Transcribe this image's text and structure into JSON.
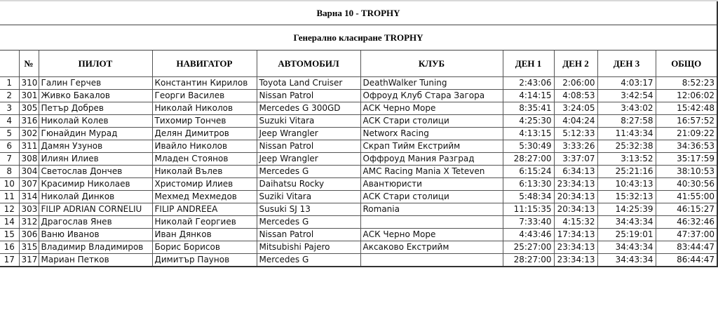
{
  "title": "Варна 10 - TROPHY",
  "subtitle": "Генерално класиране TROPHY",
  "columns": [
    "",
    "№",
    "ПИЛОТ",
    "НАВИГАТОР",
    "АВТОМОБИЛ",
    "КЛУБ",
    "ДЕН 1",
    "ДЕН 2",
    "ДЕН 3",
    "ОБЩО"
  ],
  "rows": [
    [
      "1",
      "310",
      "Галин Герчев",
      "Константин Кирилов",
      "Toyota Land Cruiser",
      "DeathWalker Tuning",
      "2:43:06",
      "2:06:00",
      "4:03:17",
      "8:52:23"
    ],
    [
      "2",
      "301",
      "Живко Бакалов",
      "Георги Василев",
      "Nissan Patrol",
      "Офроуд Клуб Стара Загора",
      "4:14:15",
      "4:08:53",
      "3:42:54",
      "12:06:02"
    ],
    [
      "3",
      "305",
      "Петър Добрев",
      "Николай Николов",
      "Mercedes G 300GD",
      "АСК Черно Море",
      "8:35:41",
      "3:24:05",
      "3:43:02",
      "15:42:48"
    ],
    [
      "4",
      "316",
      "Николай Колев",
      "Тихомир Тончев",
      "Suzuki Vitara",
      "АСК Стари столици",
      "4:25:30",
      "4:04:24",
      "8:27:58",
      "16:57:52"
    ],
    [
      "5",
      "302",
      "Гюнайдин Мурад",
      "Делян Димитров",
      "Jeep Wrangler",
      "Networx Racing",
      "4:13:15",
      "5:12:33",
      "11:43:34",
      "21:09:22"
    ],
    [
      "6",
      "311",
      "Дамян Узунов",
      "Ивайло Николов",
      "Nissan Patrol",
      "Скрап Тийм Екстрийм",
      "5:30:49",
      "3:33:26",
      "25:32:38",
      "34:36:53"
    ],
    [
      "7",
      "308",
      "Илиян Илиев",
      "Младен Стоянов",
      "Jeep Wrangler",
      "Оффроуд Мания Разград",
      "28:27:00",
      "3:37:07",
      "3:13:52",
      "35:17:59"
    ],
    [
      "8",
      "304",
      "Светослав Дончев",
      "Николай Вълев",
      "Mercedes G",
      "AMC Racing Mania X Teteven",
      "6:15:24",
      "6:34:13",
      "25:21:16",
      "38:10:53"
    ],
    [
      "10",
      "307",
      "Красимир Николаев",
      "Христомир Илиев",
      "Daihatsu Rocky",
      "Авантюристи",
      "6:13:30",
      "23:34:13",
      "10:43:13",
      "40:30:56"
    ],
    [
      "11",
      "314",
      "Николай Динков",
      "Мехмед Мехмедов",
      "Suziki Vitara",
      "АСК Стари столици",
      "5:48:34",
      "20:34:13",
      "15:32:13",
      "41:55:00"
    ],
    [
      "12",
      "303",
      "FILIP ADRIAN CORNELIU",
      "FILIP ANDREEA",
      "Susuki SJ 13",
      "Romania",
      "11:15:35",
      "20:34:13",
      "14:25:39",
      "46:15:27"
    ],
    [
      "14",
      "312",
      "Драгослав Янев",
      "Николай Георгиев",
      "Mercedes G",
      "",
      "7:33:40",
      "4:15:32",
      "34:43:34",
      "46:32:46"
    ],
    [
      "15",
      "306",
      "Ваню Иванов",
      "Иван Дянков",
      "Nissan Patrol",
      "АСК Черно Море",
      "4:43:46",
      "17:34:13",
      "25:19:01",
      "47:37:00"
    ],
    [
      "16",
      "315",
      "Владимир Владимиров",
      "Борис Борисов",
      "Mitsubishi Pajero",
      "Аксаково Екстрийм",
      "25:27:00",
      "23:34:13",
      "34:43:34",
      "83:44:47"
    ],
    [
      "17",
      "317",
      "Мариан Петков",
      "Димитър Паунов",
      "Mercedes G",
      "",
      "28:27:00",
      "23:34:13",
      "34:43:34",
      "86:44:47"
    ]
  ]
}
